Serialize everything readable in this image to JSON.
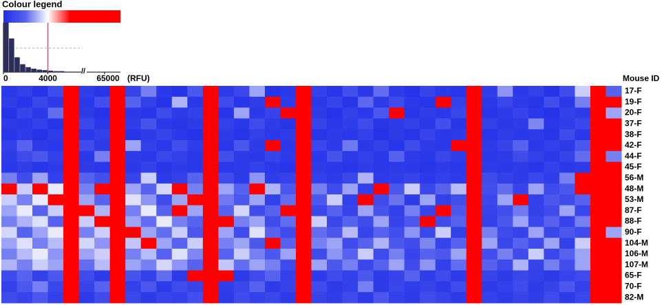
{
  "chart_data": [
    {
      "type": "heatmap",
      "rows_title": "Mouse ID",
      "rows": [
        "17-F",
        "19-F",
        "20-F",
        "37-F",
        "38-F",
        "42-F",
        "44-F",
        "45-F",
        "56-M",
        "48-M",
        "53-M",
        "87-F",
        "88-F",
        "90-F",
        "104-M",
        "106-M",
        "107-M",
        "65-F",
        "70-F",
        "82-M"
      ],
      "low_color": "#1f2ee8",
      "mid_color": "#ffffff",
      "high_color": "#ff0000",
      "color_mid": 4000,
      "color_high": 6000,
      "values": [
        [
          900,
          1200,
          700,
          1500,
          9000,
          1100,
          800,
          12000,
          1300,
          2500,
          900,
          700,
          1800,
          8000,
          1000,
          1400,
          3000,
          700,
          900,
          10000,
          1200,
          800,
          1600,
          900,
          2200,
          1000,
          700,
          1300,
          900,
          800,
          9000,
          1100,
          2800,
          900,
          1200,
          700,
          1500,
          3500,
          11000,
          2000
        ],
        [
          1100,
          800,
          1400,
          1000,
          7000,
          900,
          1600,
          9000,
          2000,
          1200,
          700,
          3200,
          900,
          8500,
          1500,
          800,
          1100,
          6000,
          1000,
          9500,
          900,
          1300,
          800,
          2100,
          1000,
          1500,
          900,
          800,
          7000,
          1200,
          8000,
          900,
          1400,
          1000,
          800,
          1600,
          900,
          2500,
          9000,
          6000
        ],
        [
          700,
          1300,
          900,
          2200,
          8000,
          1000,
          700,
          10000,
          900,
          800,
          1500,
          1000,
          1200,
          9000,
          800,
          3000,
          900,
          1300,
          7500,
          8800,
          1000,
          700,
          1200,
          900,
          1800,
          6500,
          800,
          1100,
          900,
          1400,
          9500,
          800,
          1000,
          1300,
          900,
          700,
          1200,
          1000,
          12000,
          3000
        ],
        [
          1000,
          900,
          1200,
          800,
          6500,
          1400,
          900,
          9500,
          1100,
          1700,
          900,
          800,
          1000,
          10000,
          1200,
          900,
          1500,
          1000,
          800,
          9000,
          1300,
          900,
          1100,
          1500,
          800,
          1000,
          1200,
          900,
          1600,
          800,
          8000,
          1200,
          900,
          1000,
          2600,
          900,
          1100,
          1400,
          8500,
          7000
        ],
        [
          800,
          1000,
          700,
          1100,
          7000,
          900,
          1200,
          8000,
          800,
          1000,
          1300,
          900,
          700,
          9000,
          1000,
          800,
          1200,
          900,
          1100,
          8000,
          800,
          1000,
          900,
          1200,
          700,
          1000,
          800,
          1300,
          900,
          1000,
          9000,
          800,
          1100,
          900,
          1000,
          800,
          1500,
          900,
          10000,
          9000
        ],
        [
          1200,
          2000,
          1000,
          900,
          8500,
          1500,
          1000,
          9000,
          3000,
          1200,
          900,
          1600,
          1100,
          8000,
          900,
          1800,
          1000,
          7000,
          900,
          9500,
          1400,
          1000,
          2400,
          900,
          1200,
          800,
          1500,
          1000,
          900,
          6000,
          8500,
          1000,
          1300,
          2000,
          900,
          1200,
          1000,
          1800,
          9000,
          8000
        ],
        [
          1000,
          1500,
          1800,
          1200,
          7500,
          900,
          2500,
          10000,
          1000,
          900,
          1400,
          1200,
          900,
          9000,
          1600,
          1000,
          900,
          1300,
          1000,
          8500,
          900,
          1700,
          1000,
          1200,
          900,
          2000,
          1000,
          900,
          1400,
          1100,
          9000,
          900,
          1000,
          1500,
          1200,
          900,
          1300,
          2200,
          9500,
          2500
        ],
        [
          900,
          1100,
          800,
          1000,
          6000,
          1000,
          900,
          8000,
          900,
          1200,
          800,
          1000,
          900,
          8500,
          900,
          1000,
          1200,
          900,
          800,
          9000,
          1000,
          900,
          800,
          1100,
          900,
          1000,
          900,
          800,
          1000,
          900,
          8000,
          1000,
          900,
          1000,
          800,
          1200,
          900,
          1000,
          8500,
          9000
        ],
        [
          2500,
          1500,
          3000,
          1200,
          9000,
          2000,
          1600,
          10000,
          1300,
          3500,
          1000,
          1200,
          2000,
          9000,
          1500,
          1000,
          2800,
          1100,
          1300,
          9500,
          1200,
          1000,
          1400,
          3200,
          1000,
          1100,
          1300,
          900,
          1200,
          1000,
          8500,
          1500,
          1200,
          1000,
          1400,
          1100,
          2500,
          7000,
          10000,
          12000
        ],
        [
          8000,
          3500,
          9000,
          3800,
          12000,
          2500,
          8500,
          15000,
          3000,
          2000,
          3600,
          7000,
          2500,
          11000,
          3000,
          2000,
          6500,
          3200,
          1800,
          10000,
          2500,
          1500,
          3000,
          1200,
          7000,
          1800,
          3500,
          1400,
          2000,
          3300,
          9000,
          1600,
          2200,
          1300,
          3000,
          1500,
          1800,
          6000,
          12000,
          9000
        ],
        [
          3500,
          2500,
          3800,
          6000,
          10000,
          3000,
          2000,
          13000,
          3700,
          2800,
          1500,
          3000,
          6500,
          9500,
          2400,
          1800,
          3000,
          1200,
          2200,
          9000,
          1800,
          3500,
          1200,
          6500,
          1500,
          2300,
          1000,
          3000,
          1200,
          1600,
          10000,
          1400,
          3000,
          6000,
          1200,
          1800,
          1500,
          2000,
          9000,
          7000
        ],
        [
          3000,
          3800,
          2000,
          3500,
          9000,
          8000,
          3200,
          12000,
          2500,
          3800,
          2000,
          7500,
          3000,
          10000,
          2000,
          3600,
          1500,
          2000,
          7000,
          9500,
          1400,
          2000,
          1300,
          3000,
          1700,
          1200,
          2500,
          1300,
          6500,
          1800,
          9000,
          1300,
          1600,
          2400,
          1200,
          1500,
          3000,
          1400,
          10000,
          8000
        ],
        [
          2500,
          3200,
          3700,
          2000,
          11000,
          3500,
          8000,
          14000,
          3000,
          2200,
          3800,
          2500,
          2000,
          12000,
          6500,
          2500,
          3000,
          1500,
          2200,
          10000,
          3500,
          1400,
          2000,
          1500,
          3000,
          1300,
          1800,
          6000,
          1500,
          2000,
          9500,
          1200,
          1800,
          3000,
          1400,
          2000,
          1300,
          2500,
          11000,
          9500
        ],
        [
          3600,
          2000,
          3000,
          3800,
          9500,
          2500,
          3500,
          10000,
          6000,
          3000,
          2200,
          3500,
          1800,
          9000,
          3000,
          1500,
          3700,
          2000,
          1500,
          9000,
          2200,
          1800,
          3300,
          1300,
          2000,
          1600,
          2800,
          1400,
          3500,
          1200,
          8000,
          2500,
          1500,
          1300,
          3000,
          1400,
          1800,
          1500,
          9000,
          3000
        ],
        [
          3000,
          3700,
          2500,
          3300,
          12000,
          3600,
          2800,
          11000,
          3400,
          7000,
          3000,
          2000,
          3500,
          10000,
          2500,
          3000,
          1800,
          6500,
          2000,
          9500,
          2500,
          3000,
          1500,
          2000,
          3200,
          1800,
          1500,
          2600,
          1300,
          2000,
          9000,
          3000,
          1400,
          2000,
          1500,
          3000,
          1200,
          3500,
          10000,
          8500
        ],
        [
          2500,
          3300,
          3800,
          2800,
          9000,
          3000,
          3500,
          12000,
          2500,
          3300,
          2000,
          3700,
          2600,
          11000,
          2000,
          3500,
          2500,
          1800,
          3000,
          8500,
          1500,
          2800,
          2000,
          3500,
          1500,
          2500,
          1300,
          2000,
          1800,
          3000,
          9000,
          1600,
          2500,
          1500,
          3500,
          1400,
          2000,
          3000,
          10000,
          6000
        ],
        [
          3200,
          2500,
          3500,
          3000,
          10000,
          2200,
          3300,
          13000,
          3000,
          2500,
          3600,
          2800,
          2000,
          9500,
          3400,
          2200,
          3000,
          2500,
          1500,
          9000,
          3000,
          1800,
          2500,
          1400,
          2000,
          3000,
          1500,
          2800,
          1200,
          2200,
          8500,
          2000,
          1500,
          3200,
          1300,
          2500,
          1600,
          3000,
          9500,
          9000
        ],
        [
          1500,
          2000,
          1200,
          1800,
          8000,
          1500,
          1000,
          11000,
          1700,
          1200,
          2200,
          1000,
          9000,
          12000,
          7000,
          1000,
          1500,
          2000,
          1200,
          9000,
          1000,
          1500,
          1200,
          1800,
          1000,
          1300,
          2000,
          1100,
          1500,
          1000,
          9500,
          1300,
          1000,
          1400,
          1200,
          1000,
          1300,
          1500,
          10000,
          7000
        ],
        [
          1200,
          1800,
          2500,
          1400,
          9000,
          1300,
          2000,
          10000,
          1200,
          1800,
          1000,
          1500,
          1300,
          9000,
          1100,
          1400,
          2000,
          1000,
          1300,
          8500,
          1500,
          1000,
          1200,
          2500,
          1000,
          1400,
          1100,
          1300,
          1000,
          1500,
          9000,
          1000,
          1200,
          1500,
          1000,
          1300,
          1800,
          1200,
          9500,
          8000
        ],
        [
          1500,
          1300,
          1800,
          1200,
          8500,
          1000,
          1500,
          9000,
          1400,
          1000,
          1300,
          1200,
          1600,
          9500,
          1000,
          1500,
          1200,
          1400,
          1000,
          9000,
          1300,
          1100,
          1500,
          1000,
          1800,
          1200,
          1000,
          1500,
          1300,
          1000,
          8500,
          1200,
          1000,
          1300,
          1100,
          1500,
          1000,
          1400,
          9000,
          8500
        ]
      ]
    },
    {
      "type": "histogram",
      "title": "Colour legend",
      "x_label": "(RFU)",
      "color": "#2b2d5a",
      "threshold": 4000,
      "threshold_color": "#e05050",
      "bins": [
        0,
        500,
        1000,
        1500,
        2000,
        2500,
        3000,
        3500,
        4000,
        4500,
        5000,
        5500,
        6000,
        6500,
        7000
      ],
      "counts": [
        100,
        68,
        30,
        16,
        10,
        7,
        5,
        4,
        3,
        2,
        2,
        1,
        1,
        1
      ],
      "xlim": [
        0,
        7000
      ],
      "ylim": [
        0,
        100
      ],
      "xticks": [
        0,
        4000
      ],
      "xticks_after_break": [
        65000
      ]
    }
  ]
}
